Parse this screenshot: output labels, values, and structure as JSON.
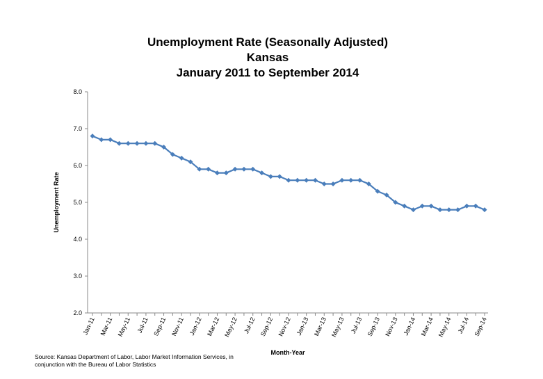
{
  "chart_data": {
    "type": "line",
    "title_lines": [
      "Unemployment Rate (Seasonally Adjusted)",
      "Kansas",
      "January 2011 to September 2014"
    ],
    "x_label": "Month-Year",
    "y_label": "Unemployment Rate",
    "source_lines": [
      "Source: Kansas Department of Labor, Labor Market Information Services, in",
      "conjunction with the Bureau of Labor Statistics"
    ],
    "categories": [
      "Jan-11",
      null,
      "Mar-11",
      null,
      "May-11",
      null,
      "Jul-11",
      null,
      "Sep-11",
      null,
      "Nov-11",
      null,
      "Jan-12",
      null,
      "Mar-12",
      null,
      "May-12",
      null,
      "Jul-12",
      null,
      "Sep-12",
      null,
      "Nov-12",
      null,
      "Jan-13",
      null,
      "Mar-13",
      null,
      "May-13",
      null,
      "Jul-13",
      null,
      "Sep-13",
      null,
      "Nov-13",
      null,
      "Jan-14",
      null,
      "Mar-14",
      null,
      "May-14",
      null,
      "Jul-14",
      null,
      "Sep-14"
    ],
    "series": [
      {
        "name": "Unemployment Rate",
        "color": "#4a7ebb",
        "values": [
          6.8,
          6.7,
          6.7,
          6.6,
          6.6,
          6.6,
          6.6,
          6.6,
          6.5,
          6.3,
          6.2,
          6.1,
          5.9,
          5.9,
          5.8,
          5.8,
          5.9,
          5.9,
          5.9,
          5.8,
          5.7,
          5.7,
          5.6,
          5.6,
          5.6,
          5.6,
          5.5,
          5.5,
          5.6,
          5.6,
          5.6,
          5.5,
          5.3,
          5.2,
          5.0,
          4.9,
          4.8,
          4.9,
          4.9,
          4.8,
          4.8,
          4.8,
          4.9,
          4.9,
          4.8
        ]
      }
    ],
    "ylim": [
      2,
      8
    ],
    "yticks": [
      {
        "value": 2,
        "label": "2.0"
      },
      {
        "value": 3,
        "label": "3.0"
      },
      {
        "value": 4,
        "label": "4.0"
      },
      {
        "value": 5,
        "label": "5.0"
      },
      {
        "value": 6,
        "label": "6.0"
      },
      {
        "value": 7,
        "label": "7.0"
      },
      {
        "value": 8,
        "label": "8.0"
      }
    ],
    "grid": false
  }
}
